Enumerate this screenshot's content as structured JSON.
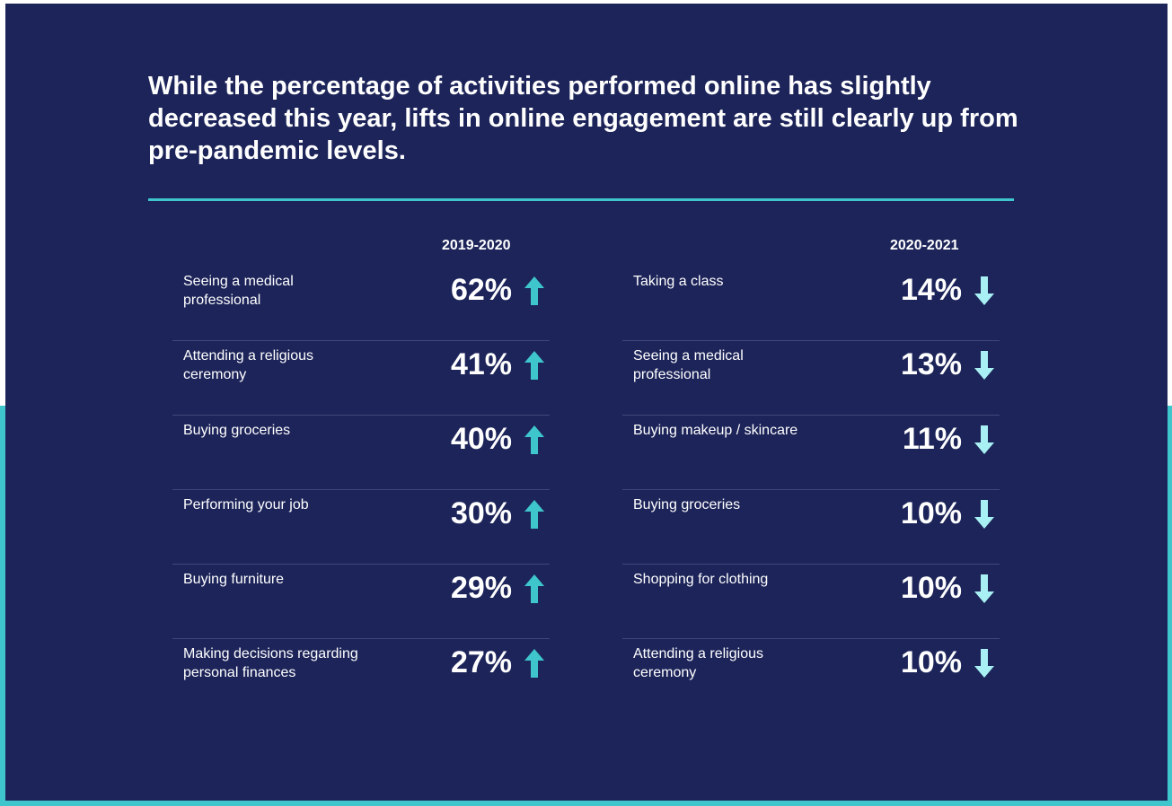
{
  "headline": "While the percentage of activities performed online has slightly decreased this year, lifts in online engagement are still clearly up from pre-pandemic levels.",
  "colors": {
    "background": "#1c2459",
    "accent": "#3ec6cc",
    "up_arrow": "#3ec6cc",
    "down_arrow": "#a8f0f3"
  },
  "chart_data": [
    {
      "type": "table",
      "title": "2019-2020",
      "direction": "up",
      "categories": [
        "Seeing a medical professional",
        "Attending a religious ceremony",
        "Buying groceries",
        "Performing your job",
        "Buying furniture",
        "Making decisions regarding personal finances"
      ],
      "values": [
        62,
        41,
        40,
        30,
        29,
        27
      ],
      "labels": [
        "62%",
        "41%",
        "40%",
        "30%",
        "29%",
        "27%"
      ]
    },
    {
      "type": "table",
      "title": "2020-2021",
      "direction": "down",
      "categories": [
        "Taking a class",
        "Seeing a medical professional",
        "Buying makeup / skincare",
        "Buying groceries",
        "Shopping for clothing",
        "Attending a religious ceremony"
      ],
      "values": [
        14,
        13,
        11,
        10,
        10,
        10
      ],
      "labels": [
        "14%",
        "13%",
        "11%",
        "10%",
        "10%",
        "10%"
      ]
    }
  ]
}
